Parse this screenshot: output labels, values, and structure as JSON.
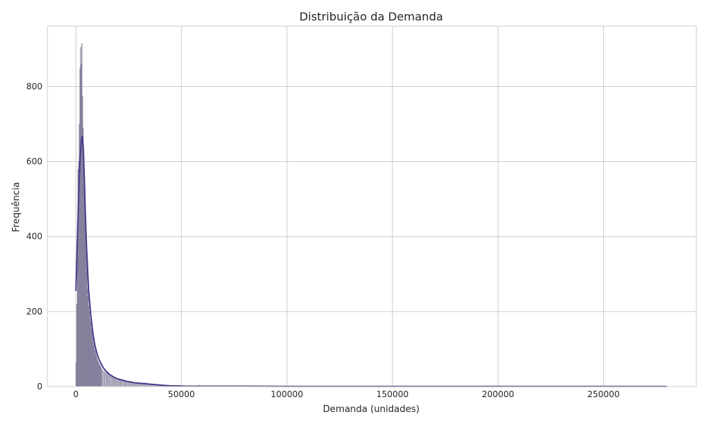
{
  "chart_data": {
    "type": "bar",
    "title": "Distribuição da Demanda",
    "xlabel": "Demanda (unidades)",
    "ylabel": "Frequência",
    "xlim": [
      -13500,
      294000
    ],
    "ylim": [
      0,
      961
    ],
    "grid": true,
    "x_ticks": [
      {
        "value": 0,
        "label": "0"
      },
      {
        "value": 50000,
        "label": "50000"
      },
      {
        "value": 100000,
        "label": "100000"
      },
      {
        "value": 150000,
        "label": "150000"
      },
      {
        "value": 200000,
        "label": "200000"
      },
      {
        "value": 250000,
        "label": "250000"
      }
    ],
    "y_ticks": [
      {
        "value": 0,
        "label": "0"
      },
      {
        "value": 200,
        "label": "200"
      },
      {
        "value": 400,
        "label": "400"
      },
      {
        "value": 600,
        "label": "600"
      },
      {
        "value": 800,
        "label": "800"
      }
    ],
    "bar_color": "#8c86a3",
    "bar_edge_color": "#7a7491",
    "kde_color": "#483d8b",
    "histogram": {
      "bin_width": 300,
      "bins": [
        [
          0,
          65
        ],
        [
          300,
          220
        ],
        [
          600,
          350
        ],
        [
          900,
          580
        ],
        [
          1200,
          600
        ],
        [
          1500,
          700
        ],
        [
          1800,
          850
        ],
        [
          2100,
          905
        ],
        [
          2400,
          860
        ],
        [
          2700,
          915
        ],
        [
          3000,
          775
        ],
        [
          3300,
          690
        ],
        [
          3600,
          600
        ],
        [
          3900,
          550
        ],
        [
          4200,
          455
        ],
        [
          4500,
          400
        ],
        [
          4800,
          370
        ],
        [
          5100,
          310
        ],
        [
          5400,
          260
        ],
        [
          5700,
          240
        ],
        [
          6000,
          215
        ],
        [
          6300,
          200
        ],
        [
          6600,
          180
        ],
        [
          6900,
          170
        ],
        [
          7200,
          155
        ],
        [
          7500,
          145
        ],
        [
          7800,
          130
        ],
        [
          8100,
          118
        ],
        [
          8400,
          110
        ],
        [
          8700,
          100
        ],
        [
          9000,
          95
        ],
        [
          9300,
          88
        ],
        [
          9600,
          82
        ],
        [
          9900,
          76
        ],
        [
          10200,
          70
        ],
        [
          10500,
          66
        ],
        [
          10800,
          62
        ],
        [
          11100,
          58
        ],
        [
          11400,
          55
        ],
        [
          11700,
          52
        ],
        [
          12000,
          48
        ],
        [
          12600,
          44
        ],
        [
          13200,
          40
        ],
        [
          13800,
          38
        ],
        [
          14400,
          36
        ],
        [
          15000,
          33
        ],
        [
          15600,
          30
        ],
        [
          16200,
          28
        ],
        [
          16800,
          26
        ],
        [
          17400,
          24
        ],
        [
          18000,
          22
        ],
        [
          18600,
          20
        ],
        [
          19200,
          19
        ],
        [
          19800,
          18
        ],
        [
          20400,
          17
        ],
        [
          21000,
          16
        ],
        [
          21600,
          20
        ],
        [
          22200,
          15
        ],
        [
          22800,
          14
        ],
        [
          23400,
          13
        ],
        [
          24000,
          12
        ],
        [
          24600,
          12
        ],
        [
          25200,
          11
        ],
        [
          25800,
          10
        ],
        [
          26400,
          10
        ],
        [
          27000,
          9
        ],
        [
          27600,
          9
        ],
        [
          28200,
          8
        ],
        [
          28800,
          8
        ],
        [
          29400,
          8
        ],
        [
          30000,
          7
        ],
        [
          30600,
          7
        ],
        [
          31200,
          7
        ],
        [
          31800,
          6
        ],
        [
          32400,
          6
        ],
        [
          33000,
          10
        ],
        [
          33600,
          6
        ],
        [
          34200,
          5
        ],
        [
          34800,
          5
        ],
        [
          35400,
          5
        ],
        [
          36000,
          5
        ],
        [
          36600,
          4
        ],
        [
          37200,
          4
        ],
        [
          37800,
          4
        ],
        [
          38400,
          4
        ],
        [
          39000,
          4
        ],
        [
          39600,
          4
        ],
        [
          40200,
          3
        ],
        [
          40800,
          3
        ],
        [
          41400,
          3
        ],
        [
          42000,
          3
        ],
        [
          43200,
          3
        ],
        [
          44400,
          2
        ],
        [
          45600,
          2
        ],
        [
          46800,
          2
        ],
        [
          48000,
          2
        ],
        [
          50400,
          2
        ],
        [
          52800,
          1
        ],
        [
          55200,
          1
        ],
        [
          57600,
          2
        ],
        [
          58500,
          4
        ],
        [
          60000,
          1
        ],
        [
          64800,
          1
        ],
        [
          70200,
          1
        ],
        [
          75000,
          1
        ],
        [
          81000,
          2
        ],
        [
          90000,
          1
        ],
        [
          100000,
          1
        ],
        [
          115000,
          1
        ],
        [
          130000,
          1
        ],
        [
          150000,
          1
        ],
        [
          175000,
          1
        ],
        [
          200000,
          1
        ],
        [
          230000,
          1
        ],
        [
          255000,
          1
        ],
        [
          279000,
          1
        ]
      ]
    },
    "kde": {
      "x": [
        0,
        500,
        1000,
        1500,
        2000,
        2500,
        3000,
        3500,
        4000,
        4500,
        5000,
        5500,
        6000,
        7000,
        8000,
        9000,
        10000,
        11000,
        12000,
        13000,
        14000,
        15000,
        16000,
        18000,
        20000,
        22000,
        24000,
        26000,
        28000,
        30000,
        32000,
        34000,
        36000,
        38000,
        40000,
        42000,
        45000,
        48000,
        52000,
        56000,
        60000,
        70000,
        80000,
        100000,
        130000,
        160000,
        200000,
        240000,
        280000
      ],
      "y": [
        255,
        350,
        450,
        540,
        610,
        650,
        668,
        640,
        560,
        460,
        380,
        320,
        260,
        195,
        145,
        110,
        88,
        72,
        60,
        50,
        43,
        37,
        32,
        25,
        20,
        17,
        14,
        12,
        10,
        9,
        8,
        7,
        6,
        5,
        4,
        3,
        2,
        2,
        1,
        1,
        1,
        1,
        1,
        0.5,
        0.5,
        0.5,
        0.5,
        0.5,
        0.5
      ]
    }
  }
}
